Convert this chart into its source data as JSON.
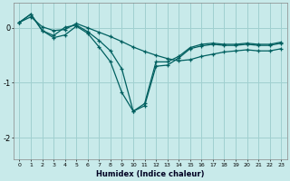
{
  "xlabel": "Humidex (Indice chaleur)",
  "bg_color": "#c8eaea",
  "grid_color": "#a0d0d0",
  "line_color": "#006060",
  "xlim": [
    -0.5,
    23.5
  ],
  "ylim": [
    -2.4,
    0.45
  ],
  "yticks": [
    0,
    -1,
    -2
  ],
  "xticks": [
    0,
    1,
    2,
    3,
    4,
    5,
    6,
    7,
    8,
    9,
    10,
    11,
    12,
    13,
    14,
    15,
    16,
    17,
    18,
    19,
    20,
    21,
    22,
    23
  ],
  "series1_x": [
    0,
    1,
    2,
    3,
    4,
    5,
    6,
    7,
    8,
    9,
    10,
    11,
    12,
    13,
    14,
    15,
    16,
    17,
    18,
    19,
    20,
    21,
    22,
    23
  ],
  "series1_y": [
    0.1,
    0.25,
    -0.05,
    -0.18,
    -0.13,
    0.03,
    -0.1,
    -0.35,
    -0.62,
    -1.18,
    -1.52,
    -1.42,
    -0.7,
    -0.68,
    -0.55,
    -0.38,
    -0.33,
    -0.3,
    -0.32,
    -0.32,
    -0.3,
    -0.32,
    -0.32,
    -0.28
  ],
  "series2_x": [
    0,
    1,
    2,
    3,
    4,
    5,
    6,
    7,
    8,
    9,
    10,
    11,
    12,
    13,
    14,
    15,
    16,
    17,
    18,
    19,
    20,
    21,
    22,
    23
  ],
  "series2_y": [
    0.1,
    0.25,
    -0.05,
    -0.14,
    0.01,
    0.05,
    -0.07,
    -0.23,
    -0.42,
    -0.75,
    -1.52,
    -1.38,
    -0.62,
    -0.62,
    -0.52,
    -0.36,
    -0.3,
    -0.28,
    -0.3,
    -0.3,
    -0.28,
    -0.3,
    -0.3,
    -0.26
  ],
  "series3_x": [
    0,
    1,
    2,
    3,
    4,
    5,
    6,
    7,
    8,
    9,
    10,
    11,
    12,
    13,
    14,
    15,
    16,
    17,
    18,
    19,
    20,
    21,
    22,
    23
  ],
  "series3_y": [
    0.1,
    0.2,
    0.02,
    -0.05,
    -0.03,
    0.08,
    0.0,
    -0.08,
    -0.16,
    -0.25,
    -0.35,
    -0.43,
    -0.5,
    -0.56,
    -0.6,
    -0.58,
    -0.52,
    -0.48,
    -0.44,
    -0.42,
    -0.4,
    -0.42,
    -0.42,
    -0.38
  ]
}
